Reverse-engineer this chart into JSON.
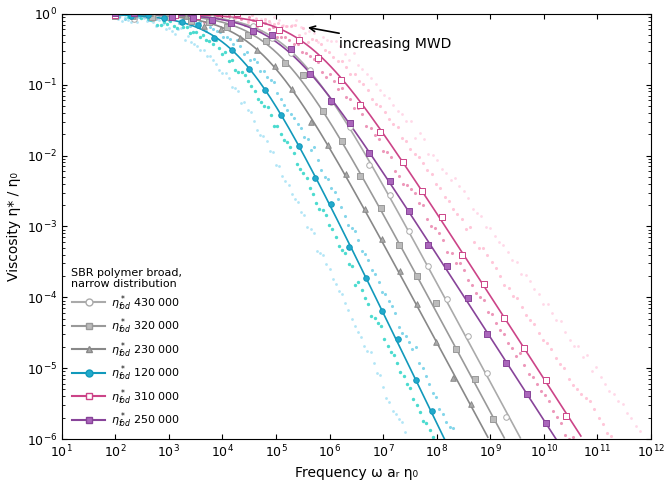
{
  "xlabel": "Frequency ω aᵣ η₀",
  "ylabel": "Viscosity η* / η₀",
  "xlim": [
    1,
    12
  ],
  "ylim": [
    -6,
    0
  ],
  "background_color": "#ffffff",
  "annotation_text": "increasing MWD",
  "ref_line_start": 1,
  "ref_line_end": 5.7,
  "curves": [
    {
      "label": "η*ᵣ₀ₐ 430 000",
      "marker": "o",
      "color": "#aaaaaa",
      "mfc": "white",
      "omega_c_log": 5.3,
      "n": 0.78,
      "power": 1.8,
      "x_min_log": 2.0,
      "x_max_log": 10.8
    },
    {
      "label": "η*ᵣ₀ₐ 320 000",
      "marker": "s",
      "color": "#999999",
      "mfc": "#bbbbbb",
      "omega_c_log": 5.0,
      "n": 0.78,
      "power": 1.8,
      "x_min_log": 2.0,
      "x_max_log": 10.5
    },
    {
      "label": "η*ᵣ₀ₐ 230 000",
      "marker": "^",
      "color": "#888888",
      "mfc": "#aaaaaa",
      "omega_c_log": 4.7,
      "n": 0.78,
      "power": 1.8,
      "x_min_log": 2.0,
      "x_max_log": 10.0
    },
    {
      "label": "η*ᵣ₀ₐ 120 000",
      "marker": "o",
      "color": "#1199bb",
      "mfc": "#22aacc",
      "omega_c_log": 4.3,
      "n": 0.78,
      "power": 2.0,
      "x_min_log": 2.0,
      "x_max_log": 9.5
    },
    {
      "label": "η*ᵣ₀ₐ 310 000",
      "marker": "s",
      "color": "#cc4488",
      "mfc": "white",
      "omega_c_log": 5.6,
      "n": 0.78,
      "power": 1.5,
      "x_min_log": 2.0,
      "x_max_log": 11.2
    },
    {
      "label": "η*ᵣ₀ₐ 250 000",
      "marker": "s",
      "color": "#884499",
      "mfc": "#aa66bb",
      "omega_c_log": 5.1,
      "n": 0.78,
      "power": 1.5,
      "x_min_log": 2.0,
      "x_max_log": 10.8
    }
  ],
  "extra_scatter": [
    {
      "color": "#00ccbb",
      "omega_c_log": 4.1,
      "n": 0.78,
      "power": 2.0,
      "x_min_log": 2.0,
      "x_max_log": 9.2,
      "alpha": 0.7,
      "s": 6
    },
    {
      "color": "#33bbdd",
      "omega_c_log": 4.5,
      "n": 0.78,
      "power": 2.0,
      "x_min_log": 2.0,
      "x_max_log": 9.5,
      "alpha": 0.6,
      "s": 5
    },
    {
      "color": "#ff99bb",
      "omega_c_log": 5.8,
      "n": 0.78,
      "power": 1.4,
      "x_min_log": 2.0,
      "x_max_log": 11.5,
      "alpha": 0.55,
      "s": 5
    },
    {
      "color": "#dd3377",
      "omega_c_log": 5.4,
      "n": 0.78,
      "power": 1.5,
      "x_min_log": 2.0,
      "x_max_log": 11.0,
      "alpha": 0.5,
      "s": 5
    },
    {
      "color": "#66ccee",
      "omega_c_log": 3.8,
      "n": 0.78,
      "power": 2.1,
      "x_min_log": 2.0,
      "x_max_log": 9.0,
      "alpha": 0.5,
      "s": 4
    },
    {
      "color": "#ffaacc",
      "omega_c_log": 6.0,
      "n": 0.78,
      "power": 1.3,
      "x_min_log": 2.0,
      "x_max_log": 11.8,
      "alpha": 0.45,
      "s": 4
    }
  ]
}
